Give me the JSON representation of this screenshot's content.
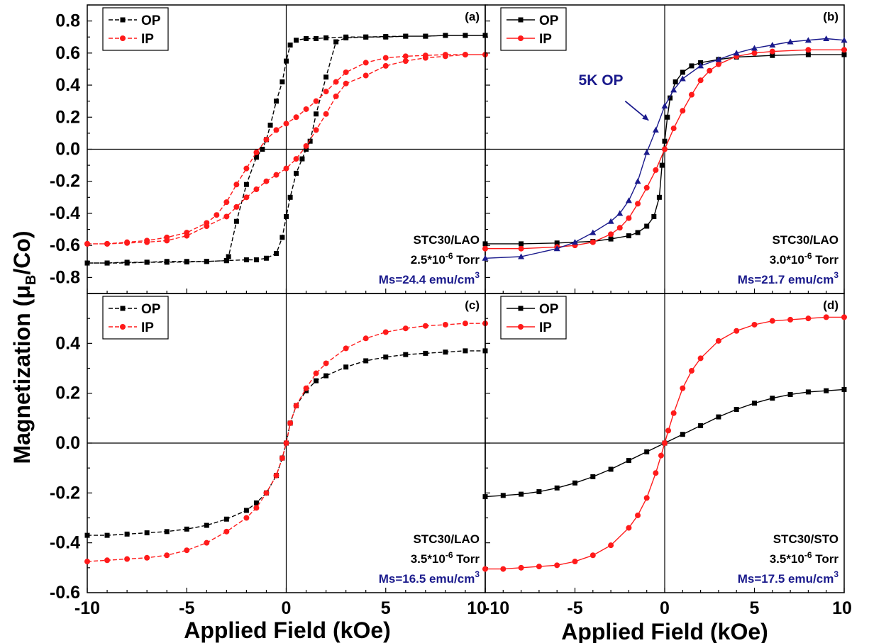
{
  "colors": {
    "op": "#000000",
    "ip": "#ff1a1a",
    "op5k": "#1a1a8c",
    "ms_text": "#1a1a8c",
    "axis": "#000000"
  },
  "axes": {
    "y_title_prefix": "Magnetization (μ",
    "y_title_sub": "B",
    "y_title_suffix": "/Co)",
    "x_title_left": "Applied Field (kOe)",
    "x_title_right": "Applied Field (kOe)"
  },
  "chart_data": [
    {
      "type": "line",
      "panel_label": "(a)",
      "xlim": [
        -10,
        10
      ],
      "ylim": [
        -0.9,
        0.9
      ],
      "x_ticks": [
        "-10",
        "-5",
        "0",
        "5",
        "10"
      ],
      "y_ticks": [
        "-0.8",
        "-0.6",
        "-0.4",
        "-0.2",
        "0.0",
        "0.2",
        "0.4",
        "0.6",
        "0.8"
      ],
      "annotation": {
        "sample": "STC30/LAO",
        "pressure": "2.5*10",
        "pressure_exp": "-6",
        "pressure_unit": " Torr",
        "ms": "Ms=24.4 emu/cm",
        "ms_exp": "3"
      },
      "series": [
        {
          "name": "OP",
          "marker": "square",
          "dashed": true,
          "x": [
            -10,
            -9,
            -8,
            -7,
            -6,
            -5,
            -4,
            -3,
            -2.9,
            -2.5,
            -2,
            -1.5,
            -1.2,
            -1,
            -0.8,
            -0.5,
            -0.2,
            0,
            0.2,
            0.5,
            1,
            1.5,
            2,
            3,
            4,
            5,
            6,
            7,
            8,
            9,
            10,
            10,
            9,
            8,
            7,
            6,
            5,
            4,
            3,
            2.5,
            2,
            1.5,
            1.2,
            1,
            0.8,
            0.5,
            0.2,
            0,
            -0.2,
            -0.5,
            -1,
            -1.5,
            -2,
            -3,
            -4,
            -5,
            -6,
            -7,
            -8,
            -9,
            -10
          ],
          "y": [
            -0.71,
            -0.71,
            -0.71,
            -0.705,
            -0.705,
            -0.703,
            -0.7,
            -0.695,
            -0.67,
            -0.45,
            -0.22,
            -0.05,
            0.0,
            0.06,
            0.15,
            0.3,
            0.42,
            0.55,
            0.65,
            0.68,
            0.69,
            0.69,
            0.695,
            0.7,
            0.7,
            0.7,
            0.705,
            0.705,
            0.71,
            0.71,
            0.71,
            0.71,
            0.71,
            0.71,
            0.705,
            0.705,
            0.703,
            0.7,
            0.695,
            0.67,
            0.45,
            0.22,
            0.05,
            0.0,
            -0.06,
            -0.15,
            -0.3,
            -0.42,
            -0.55,
            -0.65,
            -0.68,
            -0.69,
            -0.69,
            -0.695,
            -0.7,
            -0.7,
            -0.7,
            -0.705,
            -0.705,
            -0.71,
            -0.71
          ]
        },
        {
          "name": "IP",
          "marker": "circle",
          "dashed": true,
          "x": [
            -10,
            -9,
            -8,
            -7,
            -6,
            -5,
            -4,
            -3.5,
            -3,
            -2.5,
            -2,
            -1.5,
            -1,
            -0.5,
            0,
            0.5,
            1,
            1.5,
            2,
            2.5,
            3,
            4,
            5,
            6,
            7,
            8,
            9,
            10,
            9,
            8,
            7,
            6,
            5,
            4,
            3,
            2.5,
            2,
            1.5,
            1,
            0.5,
            0,
            -0.5,
            -1,
            -1.5,
            -2,
            -2.5,
            -3,
            -4,
            -5,
            -6,
            -7,
            -8,
            -9,
            -10
          ],
          "y": [
            -0.59,
            -0.59,
            -0.58,
            -0.57,
            -0.55,
            -0.52,
            -0.46,
            -0.41,
            -0.33,
            -0.22,
            -0.12,
            -0.02,
            0.06,
            0.12,
            0.16,
            0.2,
            0.25,
            0.3,
            0.36,
            0.42,
            0.48,
            0.54,
            0.57,
            0.58,
            0.585,
            0.59,
            0.59,
            0.59,
            0.59,
            0.58,
            0.57,
            0.55,
            0.52,
            0.46,
            0.41,
            0.33,
            0.22,
            0.12,
            0.02,
            -0.06,
            -0.12,
            -0.16,
            -0.2,
            -0.25,
            -0.3,
            -0.36,
            -0.42,
            -0.48,
            -0.54,
            -0.57,
            -0.58,
            -0.585,
            -0.59,
            -0.59
          ]
        }
      ]
    },
    {
      "type": "line",
      "panel_label": "(b)",
      "xlim": [
        -10,
        10
      ],
      "ylim": [
        -0.9,
        0.9
      ],
      "x_ticks": [
        "-10",
        "-5",
        "0",
        "5",
        "10"
      ],
      "annotation": {
        "sample": "STC30/LAO",
        "pressure": "3.0*10",
        "pressure_exp": "-6",
        "pressure_unit": " Torr",
        "ms": "Ms=21.7 emu/cm",
        "ms_exp": "3"
      },
      "arrow_label": "5K OP",
      "series": [
        {
          "name": "OP",
          "marker": "square",
          "dashed": false,
          "x": [
            -10,
            -8,
            -6,
            -4,
            -3,
            -2,
            -1.5,
            -1,
            -0.6,
            -0.3,
            -0.15,
            0,
            0.15,
            0.3,
            0.6,
            1,
            1.5,
            2,
            3,
            4,
            6,
            8,
            10
          ],
          "y": [
            -0.59,
            -0.59,
            -0.585,
            -0.575,
            -0.56,
            -0.54,
            -0.52,
            -0.48,
            -0.42,
            -0.3,
            -0.1,
            0.05,
            0.2,
            0.32,
            0.42,
            0.48,
            0.52,
            0.54,
            0.56,
            0.575,
            0.585,
            0.59,
            0.59
          ]
        },
        {
          "name": "IP",
          "marker": "circle",
          "dashed": false,
          "x": [
            -10,
            -8,
            -6,
            -5,
            -4,
            -3,
            -2.5,
            -2,
            -1.5,
            -1,
            -0.5,
            0,
            0.5,
            1,
            1.5,
            2,
            2.5,
            3,
            4,
            5,
            6,
            8,
            10
          ],
          "y": [
            -0.62,
            -0.62,
            -0.61,
            -0.6,
            -0.58,
            -0.53,
            -0.49,
            -0.43,
            -0.34,
            -0.24,
            -0.13,
            0.0,
            0.13,
            0.24,
            0.34,
            0.43,
            0.49,
            0.53,
            0.58,
            0.6,
            0.61,
            0.62,
            0.62
          ]
        },
        {
          "name": "5K OP",
          "marker": "triangle",
          "dashed": false,
          "x": [
            -10,
            -8,
            -6,
            -5,
            -4,
            -3,
            -2.5,
            -2,
            -1.5,
            -1,
            -0.5,
            0,
            0.5,
            1,
            2,
            3,
            4,
            5,
            6,
            7,
            8,
            9,
            10
          ],
          "y": [
            -0.68,
            -0.67,
            -0.62,
            -0.58,
            -0.52,
            -0.45,
            -0.4,
            -0.32,
            -0.2,
            -0.02,
            0.12,
            0.27,
            0.37,
            0.44,
            0.52,
            0.56,
            0.6,
            0.63,
            0.65,
            0.67,
            0.68,
            0.69,
            0.68
          ]
        }
      ]
    },
    {
      "type": "line",
      "panel_label": "(c)",
      "xlim": [
        -10,
        10
      ],
      "ylim": [
        -0.6,
        0.6
      ],
      "x_ticks": [
        "-10",
        "-5",
        "0",
        "5",
        "10"
      ],
      "y_ticks": [
        "-0.6",
        "-0.4",
        "-0.2",
        "0.0",
        "0.2",
        "0.4"
      ],
      "annotation": {
        "sample": "STC30/LAO",
        "pressure": "3.5*10",
        "pressure_exp": "-6",
        "pressure_unit": " Torr",
        "ms": "Ms=16.5 emu/cm",
        "ms_exp": "3"
      },
      "series": [
        {
          "name": "OP",
          "marker": "square",
          "dashed": true,
          "x": [
            -10,
            -9,
            -8,
            -7,
            -6,
            -5,
            -4,
            -3,
            -2,
            -1.5,
            -1,
            -0.5,
            -0.2,
            0,
            0.2,
            0.5,
            1,
            1.5,
            2,
            3,
            4,
            5,
            6,
            7,
            8,
            9,
            10
          ],
          "y": [
            -0.37,
            -0.37,
            -0.365,
            -0.36,
            -0.355,
            -0.345,
            -0.33,
            -0.305,
            -0.27,
            -0.24,
            -0.2,
            -0.13,
            -0.06,
            0.0,
            0.08,
            0.15,
            0.21,
            0.25,
            0.27,
            0.305,
            0.33,
            0.345,
            0.355,
            0.36,
            0.365,
            0.37,
            0.37
          ]
        },
        {
          "name": "IP",
          "marker": "circle",
          "dashed": true,
          "x": [
            -10,
            -9,
            -8,
            -7,
            -6,
            -5,
            -4,
            -3,
            -2,
            -1.5,
            -1,
            -0.5,
            -0.2,
            0,
            0.2,
            0.5,
            1,
            1.5,
            2,
            3,
            4,
            5,
            6,
            7,
            8,
            9,
            10
          ],
          "y": [
            -0.475,
            -0.47,
            -0.465,
            -0.46,
            -0.45,
            -0.43,
            -0.4,
            -0.355,
            -0.3,
            -0.26,
            -0.2,
            -0.13,
            -0.06,
            0.0,
            0.08,
            0.15,
            0.22,
            0.28,
            0.32,
            0.38,
            0.42,
            0.445,
            0.46,
            0.47,
            0.475,
            0.48,
            0.48
          ]
        }
      ]
    },
    {
      "type": "line",
      "panel_label": "(d)",
      "xlim": [
        -10,
        10
      ],
      "ylim": [
        -0.6,
        0.6
      ],
      "x_ticks": [
        "-10",
        "-5",
        "0",
        "5",
        "10"
      ],
      "annotation": {
        "sample": "STC30/STO",
        "pressure": "3.5*10",
        "pressure_exp": "-6",
        "pressure_unit": " Torr",
        "ms": "Ms=17.5 emu/cm",
        "ms_exp": "3"
      },
      "series": [
        {
          "name": "OP",
          "marker": "square",
          "dashed": false,
          "x": [
            -10,
            -9,
            -8,
            -7,
            -6,
            -5,
            -4,
            -3,
            -2,
            -1,
            0,
            1,
            2,
            3,
            4,
            5,
            6,
            7,
            8,
            9,
            10
          ],
          "y": [
            -0.215,
            -0.21,
            -0.205,
            -0.195,
            -0.18,
            -0.16,
            -0.135,
            -0.105,
            -0.07,
            -0.035,
            0.0,
            0.035,
            0.07,
            0.105,
            0.135,
            0.16,
            0.18,
            0.195,
            0.205,
            0.21,
            0.215
          ]
        },
        {
          "name": "IP",
          "marker": "circle",
          "dashed": false,
          "x": [
            -10,
            -9,
            -8,
            -7,
            -6,
            -5,
            -4,
            -3,
            -2,
            -1.5,
            -1,
            -0.5,
            -0.2,
            0,
            0.2,
            0.5,
            1,
            1.5,
            2,
            3,
            4,
            5,
            6,
            7,
            8,
            9,
            10
          ],
          "y": [
            -0.505,
            -0.505,
            -0.5,
            -0.495,
            -0.49,
            -0.475,
            -0.45,
            -0.41,
            -0.34,
            -0.29,
            -0.22,
            -0.12,
            -0.05,
            0.0,
            0.05,
            0.12,
            0.22,
            0.29,
            0.34,
            0.41,
            0.45,
            0.475,
            0.49,
            0.495,
            0.5,
            0.505,
            0.505
          ]
        }
      ]
    }
  ]
}
